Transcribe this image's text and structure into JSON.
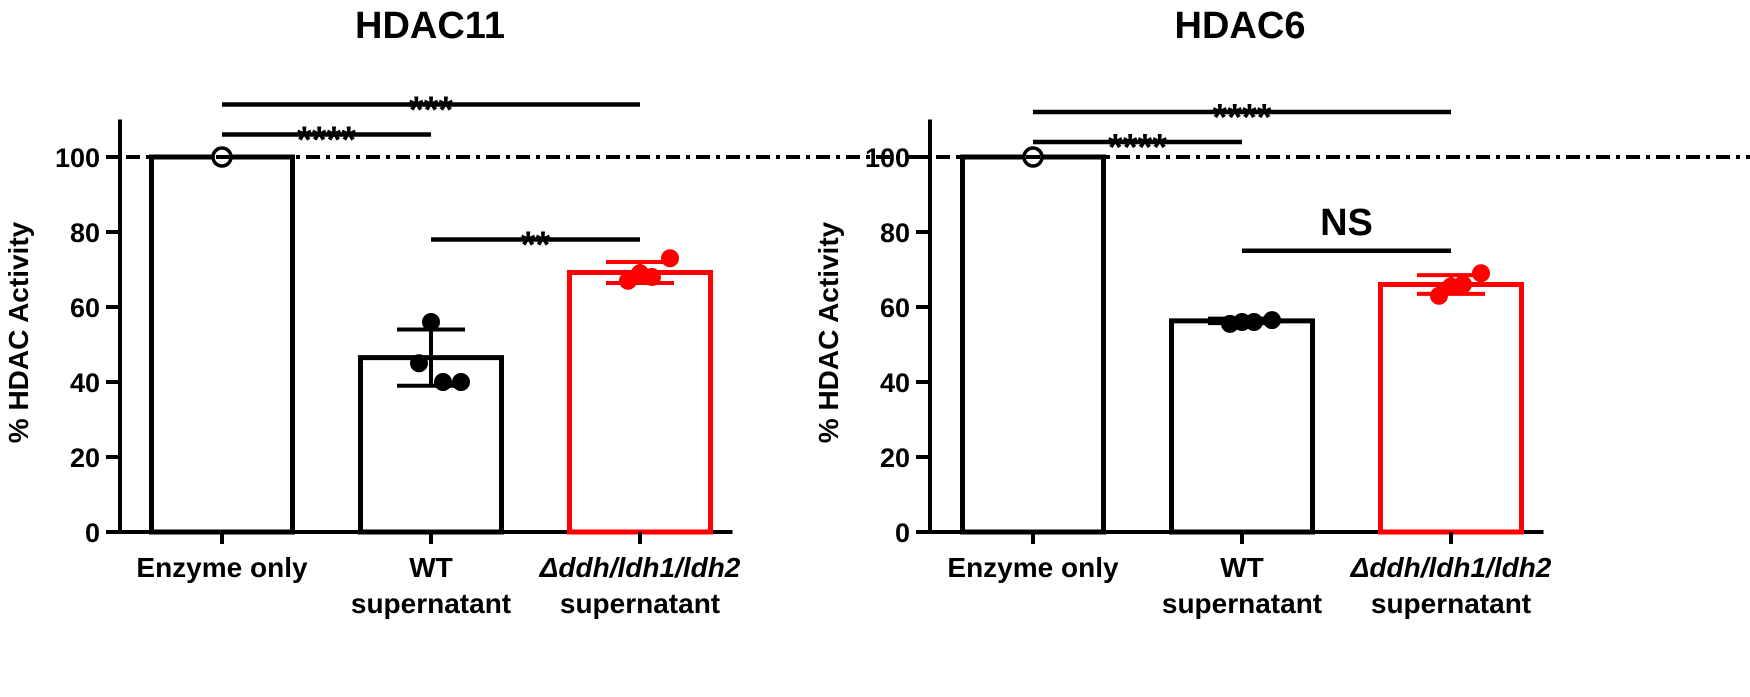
{
  "chart_data": [
    {
      "type": "bar",
      "title": "HDAC11",
      "ylabel": "% HDAC Activity",
      "xlabel": "",
      "ylim": [
        0,
        110
      ],
      "yticks": [
        0,
        20,
        40,
        60,
        80,
        100
      ],
      "reference_line": 100,
      "categories": [
        {
          "lines": [
            "Enzyme only"
          ]
        },
        {
          "lines": [
            "WT",
            "supernatant"
          ]
        },
        {
          "lines": [
            "Δddh/ldh1/ldh2",
            "supernatant"
          ],
          "italic_first": true
        }
      ],
      "bars": [
        {
          "value": 100,
          "error": 0,
          "color": "#000000",
          "points": [
            100
          ],
          "hollow_point": true
        },
        {
          "value": 46.5,
          "error": 7.5,
          "color": "#000000",
          "points": [
            56,
            45,
            40,
            40
          ]
        },
        {
          "value": 69.2,
          "error": 2.8,
          "color": "#ff0000",
          "points": [
            69,
            67,
            68,
            73
          ]
        }
      ],
      "significance": [
        {
          "from": 0,
          "to": 1,
          "y": 106,
          "label": "****"
        },
        {
          "from": 0,
          "to": 2,
          "y": 114,
          "label": "***"
        },
        {
          "from": 1,
          "to": 2,
          "y": 78,
          "label": "**"
        }
      ]
    },
    {
      "type": "bar",
      "title": "HDAC6",
      "ylabel": "% HDAC Activity",
      "xlabel": "",
      "ylim": [
        0,
        110
      ],
      "yticks": [
        0,
        20,
        40,
        60,
        80,
        100
      ],
      "reference_line": 100,
      "categories": [
        {
          "lines": [
            "Enzyme only"
          ]
        },
        {
          "lines": [
            "WT",
            "supernatant"
          ]
        },
        {
          "lines": [
            "Δddh/ldh1/ldh2",
            "supernatant"
          ],
          "italic_first": true
        }
      ],
      "bars": [
        {
          "value": 100,
          "error": 0,
          "color": "#000000",
          "points": [
            100
          ],
          "hollow_point": true
        },
        {
          "value": 56.3,
          "error": 0.6,
          "color": "#000000",
          "points": [
            56,
            55.5,
            56,
            56.5
          ]
        },
        {
          "value": 66.0,
          "error": 2.5,
          "color": "#ff0000",
          "points": [
            65.5,
            63,
            66,
            69
          ]
        }
      ],
      "significance": [
        {
          "from": 0,
          "to": 1,
          "y": 104,
          "label": "****"
        },
        {
          "from": 0,
          "to": 2,
          "y": 112,
          "label": "****"
        },
        {
          "from": 1,
          "to": 2,
          "y": 75,
          "label": "NS"
        }
      ]
    }
  ]
}
